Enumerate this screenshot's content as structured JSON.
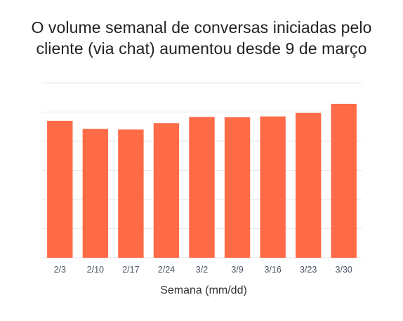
{
  "chart_data": {
    "type": "bar",
    "title_lines": [
      "O volume semanal de conversas iniciadas pelo",
      "cliente (via chat) aumentou desde 9 de março"
    ],
    "xlabel": "Semana (mm/dd)",
    "ylabel": "",
    "categories": [
      "2/3",
      "2/10",
      "2/17",
      "2/24",
      "3/2",
      "3/9",
      "3/16",
      "3/23",
      "3/30"
    ],
    "values": [
      4.7,
      4.42,
      4.4,
      4.62,
      4.83,
      4.82,
      4.85,
      4.97,
      5.28
    ],
    "ylim": [
      0,
      6
    ],
    "grid": true,
    "y_tick_labels_visible": false,
    "colors": {
      "bar": "#FF6B47",
      "grid": "#E6E6E6",
      "tick_label": "#4A5466",
      "axis_label": "#333333",
      "title": "#222222"
    }
  }
}
